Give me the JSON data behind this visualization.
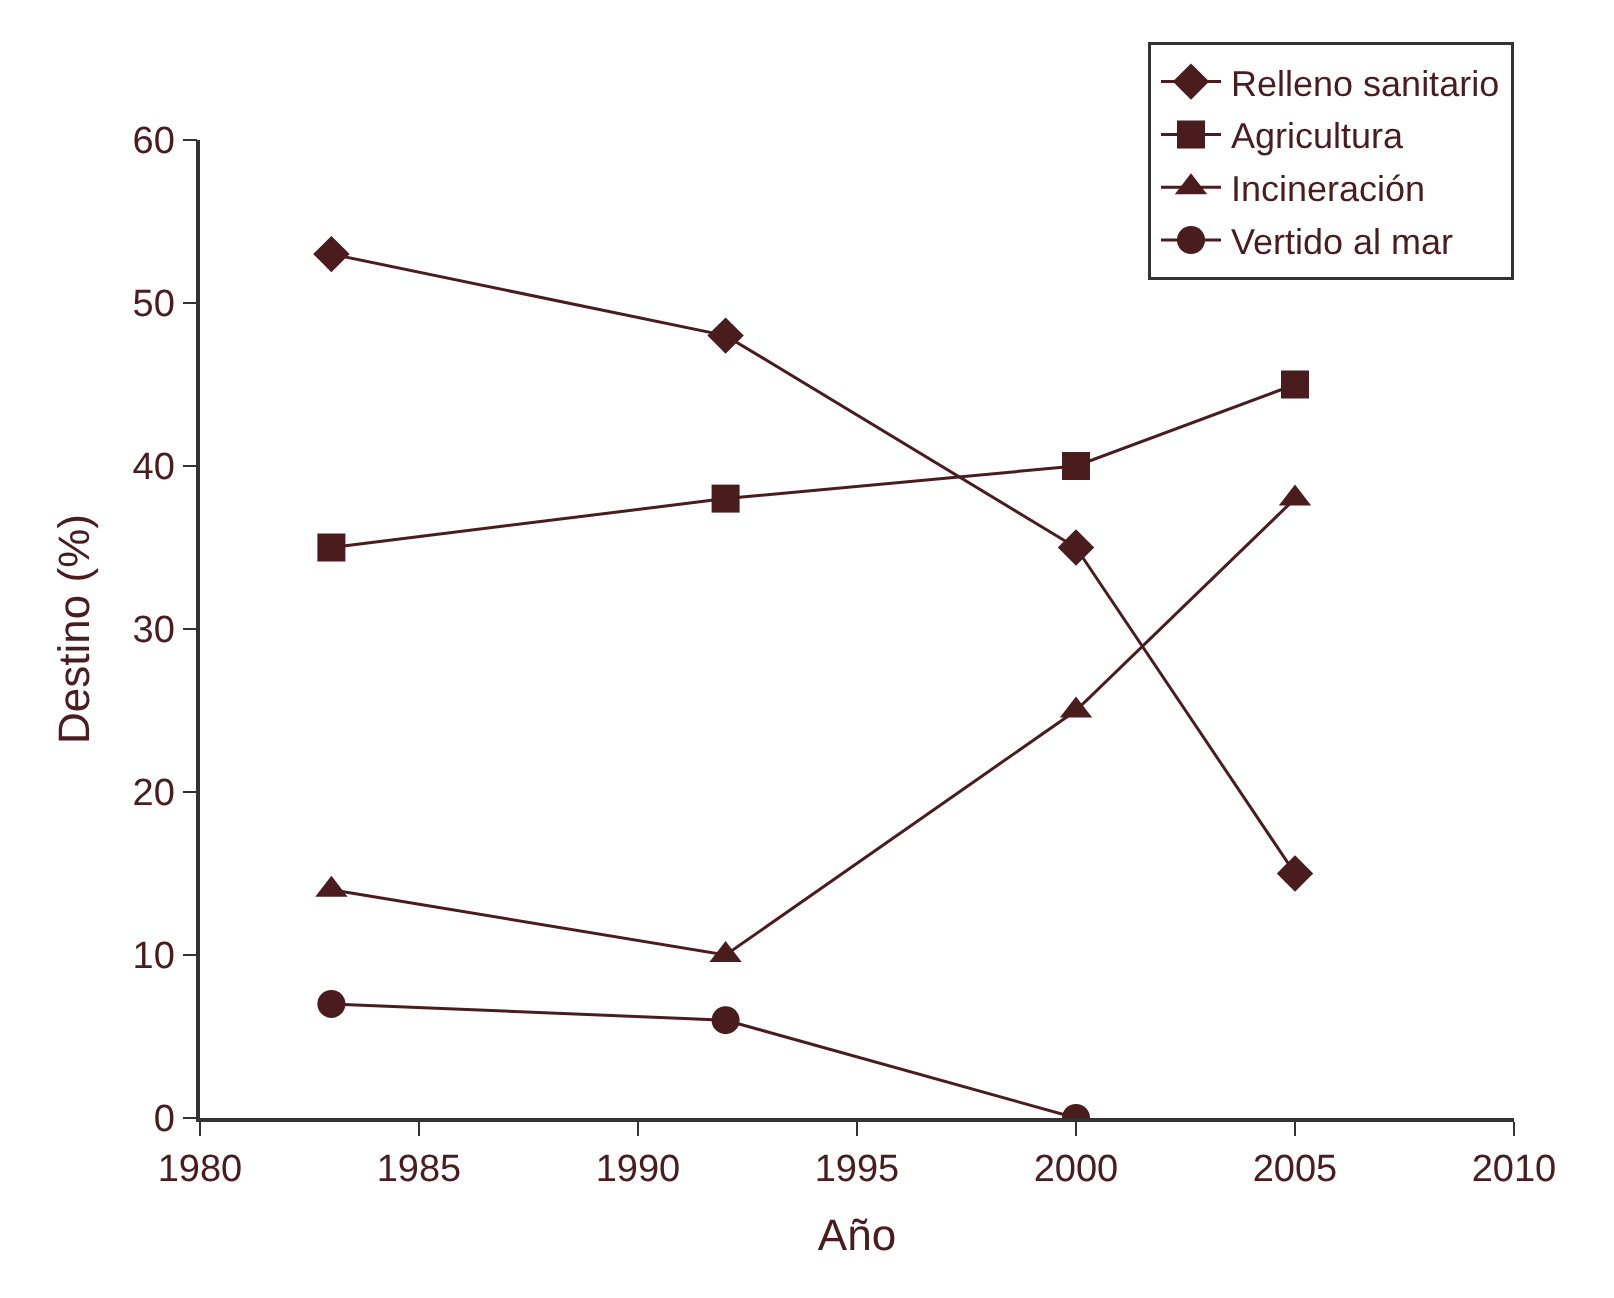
{
  "chart_data": {
    "type": "line",
    "xlabel": "Año",
    "ylabel": "Destino (%)",
    "x": [
      1983,
      1992,
      2000,
      2005
    ],
    "series": [
      {
        "name": "Relleno sanitario",
        "color": "#4a1c1e",
        "marker": "diamond",
        "values": [
          53,
          48,
          35,
          15
        ]
      },
      {
        "name": "Agricultura",
        "color": "#4a1c1e",
        "marker": "square",
        "values": [
          35,
          38,
          40,
          45
        ]
      },
      {
        "name": "Incineración",
        "color": "#4a1c1e",
        "marker": "triangle",
        "values": [
          14,
          10,
          25,
          38
        ]
      },
      {
        "name": "Vertido al mar",
        "color": "#4a1c1e",
        "marker": "circle",
        "values": [
          7,
          6,
          0,
          null
        ]
      }
    ],
    "xlim": [
      1980,
      2010
    ],
    "xticks": [
      1980,
      1985,
      1990,
      1995,
      2000,
      2005,
      2010
    ],
    "ylim": [
      0,
      60
    ],
    "yticks": [
      0,
      10,
      20,
      30,
      40,
      50,
      60
    ],
    "legend": "top right",
    "line_style": "solid"
  }
}
